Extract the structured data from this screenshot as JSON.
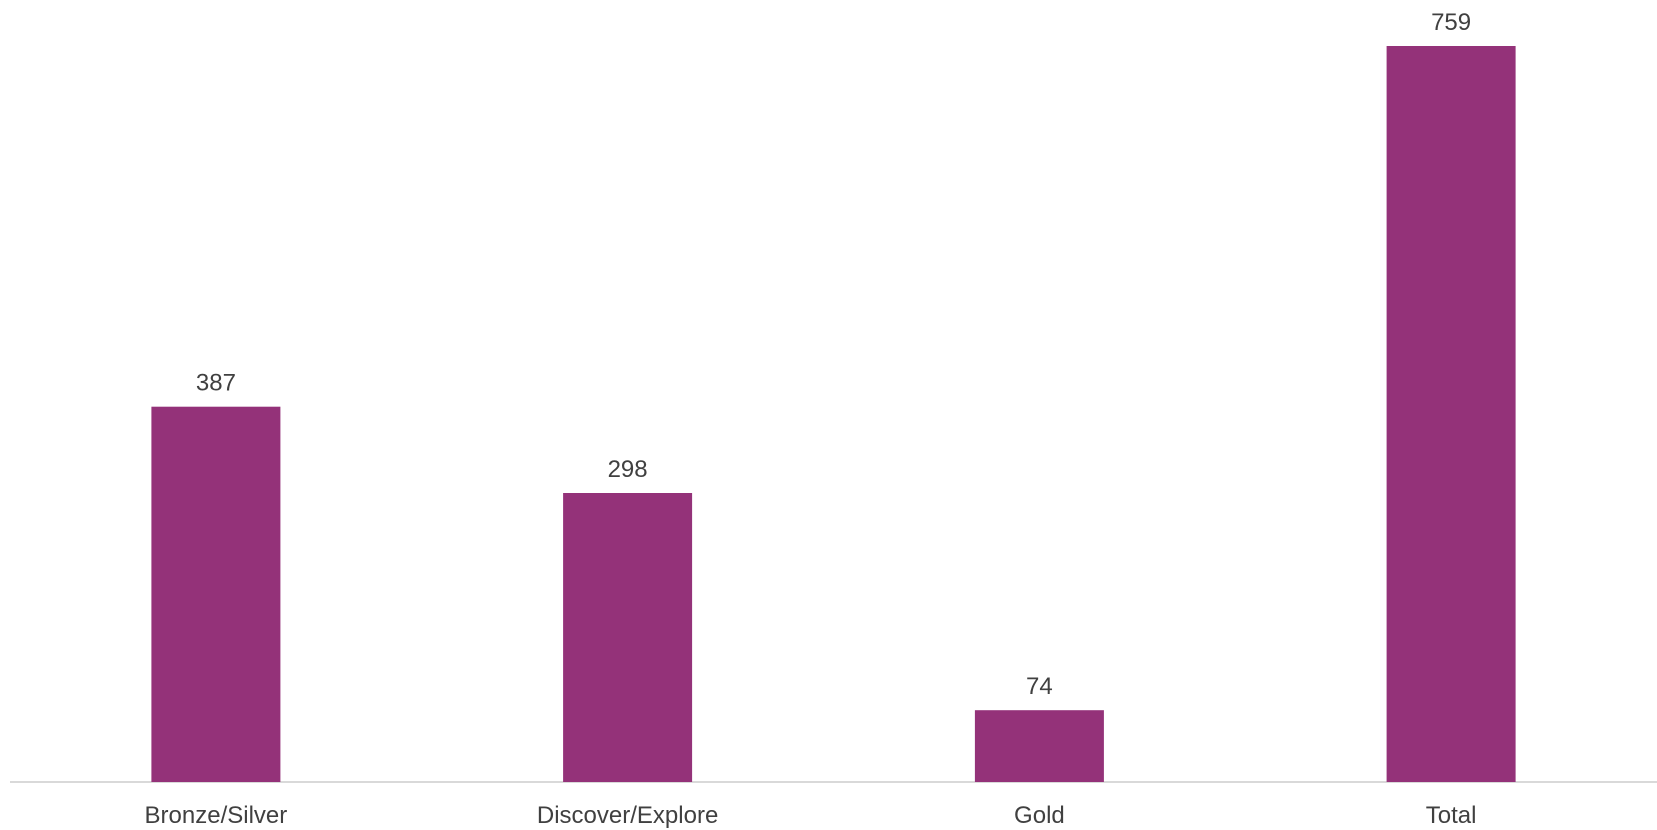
{
  "chart_data": {
    "type": "bar",
    "categories": [
      "Bronze/Silver",
      "Discover/Explore",
      "Gold",
      "Total"
    ],
    "values": [
      387,
      298,
      74,
      759
    ],
    "data_labels": [
      "387",
      "298",
      "74",
      "759"
    ],
    "title": "",
    "xlabel": "",
    "ylabel": "",
    "ylim": [
      0,
      759
    ],
    "grid": false,
    "legend": "none",
    "colors": {
      "bar": "#943279",
      "axis": "#d9d9d9",
      "text": "#404040"
    }
  }
}
